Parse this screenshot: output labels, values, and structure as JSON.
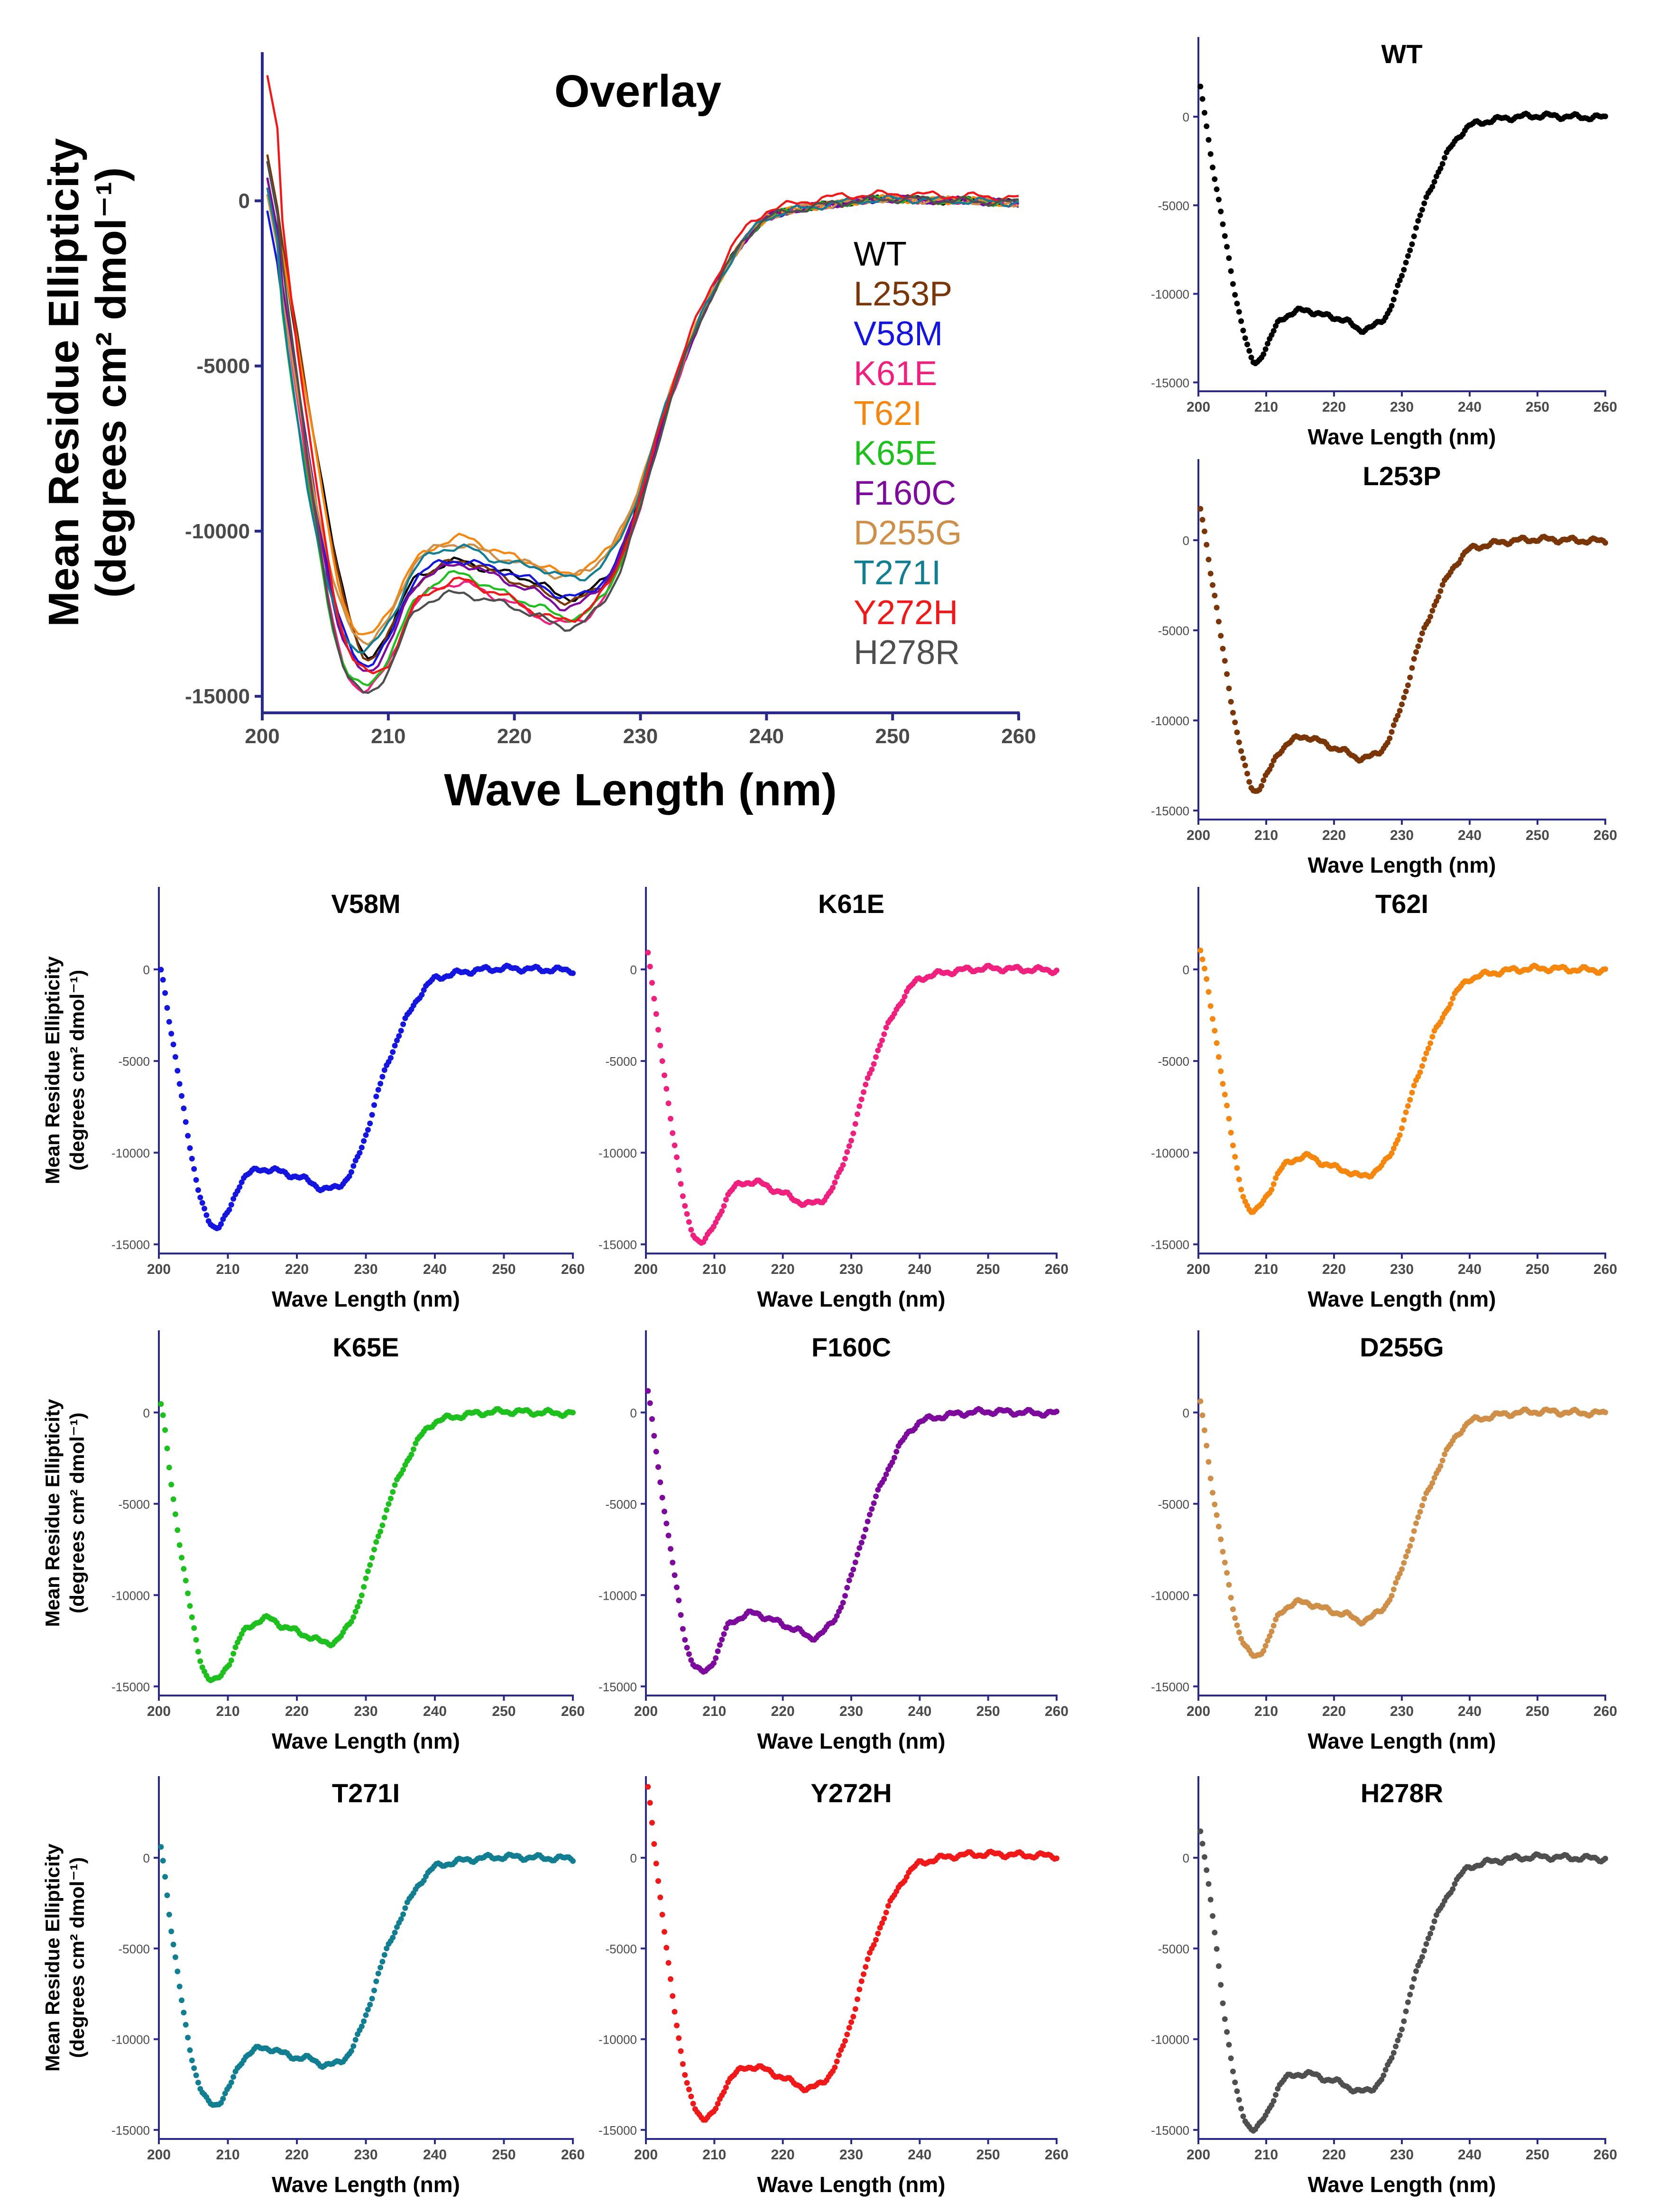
{
  "figure": {
    "ylabel_line1": "Mean Residue Ellipticity"
  },
  "chart_data": [
    {
      "id": "overlay",
      "type": "line",
      "title": "Overlay",
      "xlabel": "Wave Length (nm)",
      "ylabel_line1": "Mean Residue Ellipticity",
      "ylabel_line2": "(degrees cm² dmol⁻¹)",
      "xlim": [
        200,
        260
      ],
      "ylim": [
        -15500,
        4500
      ],
      "xticks": [
        200,
        210,
        220,
        230,
        240,
        250,
        260
      ],
      "yticks": [
        0,
        -5000,
        -10000,
        -15000
      ],
      "legend": [
        "WT",
        "L253P",
        "V58M",
        "K61E",
        "T62I",
        "K65E",
        "F160C",
        "D255G",
        "T271I",
        "Y272H",
        "H278R"
      ],
      "series_ref": "all"
    },
    {
      "id": "WT",
      "type": "scatter",
      "title": "WT",
      "color": "#000000",
      "xlabel": "Wave Length (nm)",
      "xlim": [
        200,
        260
      ],
      "ylim": [
        -15500,
        4500
      ],
      "xticks": [
        200,
        210,
        220,
        230,
        240,
        250,
        260
      ],
      "yticks": [
        0,
        -5000,
        -10000,
        -15000
      ],
      "x": [
        200,
        202,
        204,
        206,
        208,
        210,
        212,
        214,
        216,
        218,
        220,
        222,
        224,
        226,
        228,
        230,
        232,
        234,
        236,
        238,
        240,
        245,
        250,
        255,
        260
      ],
      "y": [
        2000,
        -2500,
        -7000,
        -11000,
        -13800,
        -13000,
        -11500,
        -11100,
        -10900,
        -11200,
        -11300,
        -11600,
        -12000,
        -11800,
        -11000,
        -9000,
        -6400,
        -4300,
        -2600,
        -1300,
        -500,
        -100,
        50,
        0,
        -50
      ]
    },
    {
      "id": "L253P",
      "type": "scatter",
      "title": "L253P",
      "color": "#7b3608",
      "xlabel": "Wave Length (nm)",
      "xlim": [
        200,
        260
      ],
      "ylim": [
        -15500,
        4500
      ],
      "xticks": [
        200,
        210,
        220,
        230,
        240,
        250,
        260
      ],
      "yticks": [
        0,
        -5000,
        -10000,
        -15000
      ],
      "x": [
        200,
        202,
        204,
        206,
        208,
        210,
        212,
        214,
        216,
        218,
        220,
        222,
        224,
        226,
        228,
        230,
        232,
        234,
        236,
        238,
        240,
        245,
        250,
        255,
        260
      ],
      "y": [
        2200,
        -2200,
        -7000,
        -11200,
        -13800,
        -13100,
        -11700,
        -11100,
        -10900,
        -11200,
        -11500,
        -11800,
        -12100,
        -11900,
        -11100,
        -9100,
        -6400,
        -4300,
        -2600,
        -1300,
        -500,
        -100,
        50,
        0,
        -50
      ]
    },
    {
      "id": "V58M",
      "type": "scatter",
      "title": "V58M",
      "color": "#1515e0",
      "xlabel": "Wave Length (nm)",
      "ylabel_line1": "Mean Residue Ellipticity",
      "ylabel_line2": "(degrees cm² dmol⁻¹)",
      "xlim": [
        200,
        260
      ],
      "ylim": [
        -15500,
        4500
      ],
      "xticks": [
        200,
        210,
        220,
        230,
        240,
        250,
        260
      ],
      "yticks": [
        0,
        -5000,
        -10000,
        -15000
      ],
      "x": [
        200,
        202,
        204,
        206,
        208,
        210,
        212,
        214,
        216,
        218,
        220,
        222,
        224,
        226,
        228,
        230,
        232,
        234,
        236,
        238,
        240,
        245,
        250,
        255,
        260
      ],
      "y": [
        500,
        -4000,
        -8500,
        -12500,
        -14000,
        -13300,
        -11500,
        -11000,
        -10900,
        -11100,
        -11300,
        -11600,
        -12000,
        -11800,
        -11000,
        -9000,
        -6400,
        -4300,
        -2600,
        -1300,
        -500,
        -100,
        50,
        0,
        -50
      ]
    },
    {
      "id": "K61E",
      "type": "scatter",
      "title": "K61E",
      "color": "#f0207f",
      "xlabel": "Wave Length (nm)",
      "xlim": [
        200,
        260
      ],
      "ylim": [
        -15500,
        4500
      ],
      "xticks": [
        200,
        210,
        220,
        230,
        240,
        250,
        260
      ],
      "yticks": [
        0,
        -5000,
        -10000,
        -15000
      ],
      "x": [
        200,
        202,
        204,
        206,
        208,
        210,
        212,
        214,
        216,
        218,
        220,
        222,
        224,
        226,
        228,
        230,
        232,
        234,
        236,
        238,
        240,
        245,
        250,
        255,
        260
      ],
      "y": [
        1500,
        -4000,
        -9000,
        -13500,
        -14800,
        -14000,
        -12300,
        -11700,
        -11600,
        -11900,
        -12200,
        -12600,
        -12800,
        -12500,
        -11400,
        -9200,
        -6500,
        -4300,
        -2600,
        -1300,
        -500,
        -100,
        50,
        0,
        -50
      ]
    },
    {
      "id": "T62I",
      "type": "scatter",
      "title": "T62I",
      "color": "#f5860e",
      "xlabel": "Wave Length (nm)",
      "xlim": [
        200,
        260
      ],
      "ylim": [
        -15500,
        4500
      ],
      "xticks": [
        200,
        210,
        220,
        230,
        240,
        250,
        260
      ],
      "yticks": [
        0,
        -5000,
        -10000,
        -15000
      ],
      "x": [
        200,
        202,
        204,
        206,
        208,
        210,
        212,
        214,
        216,
        218,
        220,
        222,
        224,
        226,
        228,
        230,
        232,
        234,
        236,
        238,
        240,
        245,
        250,
        255,
        260
      ],
      "y": [
        1500,
        -2500,
        -7000,
        -11500,
        -13200,
        -12400,
        -11000,
        -10400,
        -10200,
        -10500,
        -10800,
        -11000,
        -11300,
        -11000,
        -10300,
        -8600,
        -6200,
        -4200,
        -2600,
        -1300,
        -500,
        -100,
        50,
        0,
        -50
      ]
    },
    {
      "id": "K65E",
      "type": "scatter",
      "title": "K65E",
      "color": "#1ec01e",
      "xlabel": "Wave Length (nm)",
      "ylabel_line1": "Mean Residue Ellipticity",
      "ylabel_line2": "(degrees cm² dmol⁻¹)",
      "xlim": [
        200,
        260
      ],
      "ylim": [
        -15500,
        4500
      ],
      "xticks": [
        200,
        210,
        220,
        230,
        240,
        250,
        260
      ],
      "yticks": [
        0,
        -5000,
        -10000,
        -15000
      ],
      "x": [
        200,
        202,
        204,
        206,
        208,
        210,
        212,
        214,
        216,
        218,
        220,
        222,
        224,
        226,
        228,
        230,
        232,
        234,
        236,
        238,
        240,
        245,
        250,
        255,
        260
      ],
      "y": [
        1000,
        -4500,
        -9500,
        -13500,
        -14700,
        -13800,
        -12200,
        -11500,
        -11300,
        -11700,
        -12000,
        -12300,
        -12600,
        -12400,
        -11300,
        -9200,
        -6500,
        -4300,
        -2600,
        -1300,
        -500,
        -100,
        50,
        0,
        -50
      ]
    },
    {
      "id": "F160C",
      "type": "scatter",
      "title": "F160C",
      "color": "#7d0a9c",
      "xlabel": "Wave Length (nm)",
      "xlim": [
        200,
        260
      ],
      "ylim": [
        -15500,
        4500
      ],
      "xticks": [
        200,
        210,
        220,
        230,
        240,
        250,
        260
      ],
      "yticks": [
        0,
        -5000,
        -10000,
        -15000
      ],
      "x": [
        200,
        202,
        204,
        206,
        208,
        210,
        212,
        214,
        216,
        218,
        220,
        222,
        224,
        226,
        228,
        230,
        232,
        234,
        236,
        238,
        240,
        245,
        250,
        255,
        260
      ],
      "y": [
        1500,
        -3500,
        -8500,
        -12800,
        -14200,
        -13500,
        -11700,
        -11200,
        -11000,
        -11300,
        -11600,
        -11900,
        -12300,
        -12000,
        -11000,
        -9000,
        -6400,
        -4300,
        -2600,
        -1300,
        -500,
        -100,
        50,
        0,
        -50
      ]
    },
    {
      "id": "D255G",
      "type": "scatter",
      "title": "D255G",
      "color": "#cf8f48",
      "xlabel": "Wave Length (nm)",
      "xlim": [
        200,
        260
      ],
      "ylim": [
        -15500,
        4500
      ],
      "xticks": [
        200,
        210,
        220,
        230,
        240,
        250,
        260
      ],
      "yticks": [
        0,
        -5000,
        -10000,
        -15000
      ],
      "x": [
        200,
        202,
        204,
        206,
        208,
        210,
        212,
        214,
        216,
        218,
        220,
        222,
        224,
        226,
        228,
        230,
        232,
        234,
        236,
        238,
        240,
        245,
        250,
        255,
        260
      ],
      "y": [
        1000,
        -4000,
        -8500,
        -12000,
        -13300,
        -12700,
        -11000,
        -10500,
        -10400,
        -10700,
        -10900,
        -11100,
        -11400,
        -11100,
        -10300,
        -8600,
        -6200,
        -4200,
        -2600,
        -1300,
        -500,
        -100,
        50,
        0,
        -50
      ]
    },
    {
      "id": "T271I",
      "type": "scatter",
      "title": "T271I",
      "color": "#127e92",
      "xlabel": "Wave Length (nm)",
      "ylabel_line1": "Mean Residue Ellipticity",
      "ylabel_line2": "(degrees cm² dmol⁻¹)",
      "xlim": [
        200,
        260
      ],
      "ylim": [
        -15500,
        4500
      ],
      "xticks": [
        200,
        210,
        220,
        230,
        240,
        250,
        260
      ],
      "yticks": [
        0,
        -5000,
        -10000,
        -15000
      ],
      "x": [
        200,
        202,
        204,
        206,
        208,
        210,
        212,
        214,
        216,
        218,
        220,
        222,
        224,
        226,
        228,
        230,
        232,
        234,
        236,
        238,
        240,
        245,
        250,
        255,
        260
      ],
      "y": [
        1200,
        -4500,
        -9500,
        -12700,
        -13600,
        -12800,
        -11200,
        -10600,
        -10500,
        -10800,
        -11000,
        -11100,
        -11400,
        -11300,
        -10500,
        -8700,
        -6200,
        -4200,
        -2600,
        -1300,
        -500,
        -100,
        50,
        0,
        -50
      ]
    },
    {
      "id": "Y272H",
      "type": "scatter",
      "title": "Y272H",
      "color": "#f01818",
      "xlabel": "Wave Length (nm)",
      "xlim": [
        200,
        260
      ],
      "ylim": [
        -15500,
        4500
      ],
      "xticks": [
        200,
        210,
        220,
        230,
        240,
        250,
        260
      ],
      "yticks": [
        0,
        -5000,
        -10000,
        -15000
      ],
      "x": [
        200,
        202,
        204,
        206,
        208,
        210,
        212,
        214,
        216,
        218,
        220,
        222,
        224,
        226,
        228,
        230,
        232,
        234,
        236,
        238,
        240,
        245,
        250,
        255,
        260
      ],
      "y": [
        4600,
        -2000,
        -7800,
        -12500,
        -14200,
        -14000,
        -12300,
        -11700,
        -11500,
        -11800,
        -12100,
        -12500,
        -12700,
        -12300,
        -11200,
        -9000,
        -6200,
        -4000,
        -2300,
        -1000,
        -300,
        100,
        200,
        150,
        100
      ]
    },
    {
      "id": "H278R",
      "type": "scatter",
      "title": "H278R",
      "color": "#4f4f4f",
      "xlabel": "Wave Length (nm)",
      "xlim": [
        200,
        260
      ],
      "ylim": [
        -15500,
        4500
      ],
      "xticks": [
        200,
        210,
        220,
        230,
        240,
        250,
        260
      ],
      "yticks": [
        0,
        -5000,
        -10000,
        -15000
      ],
      "x": [
        200,
        202,
        204,
        206,
        208,
        210,
        212,
        214,
        216,
        218,
        220,
        222,
        224,
        226,
        228,
        230,
        232,
        234,
        236,
        238,
        240,
        245,
        250,
        255,
        260
      ],
      "y": [
        2000,
        -3000,
        -9000,
        -13500,
        -14900,
        -14200,
        -12500,
        -12000,
        -11900,
        -12100,
        -12300,
        -12600,
        -12900,
        -12600,
        -11500,
        -9300,
        -6500,
        -4300,
        -2600,
        -1300,
        -500,
        -100,
        50,
        0,
        -50
      ]
    }
  ]
}
